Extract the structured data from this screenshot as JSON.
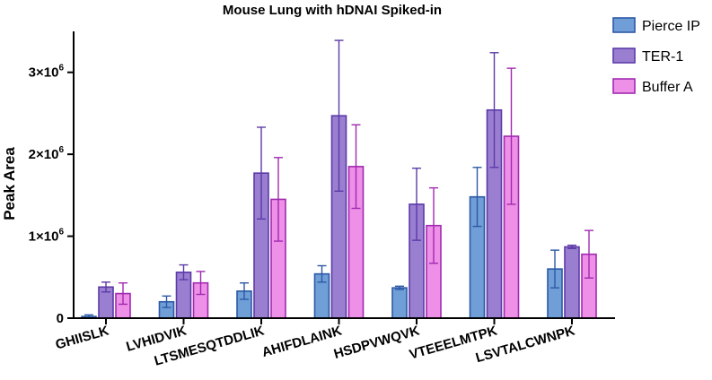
{
  "chart_data": {
    "type": "bar",
    "title": "Mouse Lung with hDNAI Spiked-in",
    "xlabel": "",
    "ylabel": "Peak Area",
    "ylim": [
      0,
      3500000
    ],
    "yticks": [
      {
        "value": 0,
        "label": "0"
      },
      {
        "value": 1000000,
        "label": "1×10",
        "exp": "6"
      },
      {
        "value": 2000000,
        "label": "2×10",
        "exp": "6"
      },
      {
        "value": 3000000,
        "label": "3×10",
        "exp": "6"
      }
    ],
    "categories": [
      "GHIISLK",
      "LVHIDVIK",
      "LTSMESQTDDLIK",
      "AHIFDLAINK",
      "HSDPVWQVK",
      "VTEEELMTPK",
      "LSVTALCWNPK"
    ],
    "series": [
      {
        "name": "Pierce IP",
        "color": "#6f9fd6",
        "edge": "#2d58a6",
        "values": [
          20000,
          200000,
          330000,
          540000,
          370000,
          1480000,
          600000
        ],
        "errors": [
          20000,
          70000,
          100000,
          100000,
          20000,
          360000,
          230000
        ]
      },
      {
        "name": "TER-1",
        "color": "#9a7fd1",
        "edge": "#5c3aa8",
        "values": [
          380000,
          560000,
          1770000,
          2470000,
          1390000,
          2540000,
          870000
        ],
        "errors": [
          60000,
          90000,
          560000,
          920000,
          440000,
          700000,
          20000
        ]
      },
      {
        "name": "Buffer A",
        "color": "#ee8fe8",
        "edge": "#a12ab0",
        "values": [
          300000,
          430000,
          1450000,
          1850000,
          1130000,
          2220000,
          780000
        ],
        "errors": [
          130000,
          140000,
          510000,
          510000,
          460000,
          830000,
          290000
        ]
      }
    ],
    "legend_position": "top-right",
    "grid": false
  }
}
